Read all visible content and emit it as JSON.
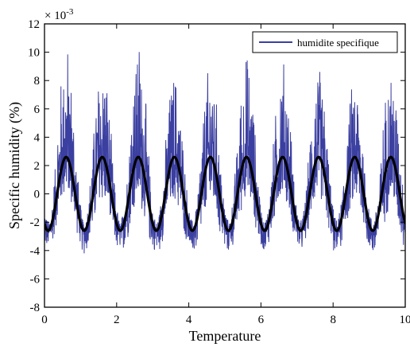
{
  "chart_data": {
    "type": "line",
    "title": "",
    "xlabel": "Temperature",
    "ylabel": "Specific humidity (%)",
    "y_exponent": "× 10^-3",
    "xlim": [
      0,
      10
    ],
    "ylim": [
      -8,
      12
    ],
    "x_ticks": [
      "0",
      "2",
      "4",
      "6",
      "8",
      "10"
    ],
    "y_ticks": [
      "-8",
      "-6",
      "-4",
      "-2",
      "0",
      "2",
      "4",
      "6",
      "8",
      "10",
      "12"
    ],
    "grid": false,
    "legend": {
      "placement": "top-right",
      "entries": [
        "humidite specifique"
      ]
    },
    "colors": {
      "noisy": "#3b3fa0",
      "smooth": "#000000"
    },
    "series": [
      {
        "name": "humidite specifique",
        "kind": "noisy",
        "period": 1.0,
        "amplitude": 2.6,
        "peak_at": 0.6,
        "peak_values": [
          10.7,
          9.8,
          11.3,
          8.4,
          9.0,
          9.8,
          9.4,
          9.0,
          8.0,
          9.0
        ],
        "trough_values": [
          -4.8,
          -5.5,
          -5.8,
          -5.5,
          -6.0,
          -5.2,
          -5.0,
          -4.9,
          -5.6,
          -5.9
        ]
      },
      {
        "name": "",
        "kind": "smooth",
        "period": 1.0,
        "amplitude": 2.6,
        "peak_at": 0.6
      }
    ]
  }
}
